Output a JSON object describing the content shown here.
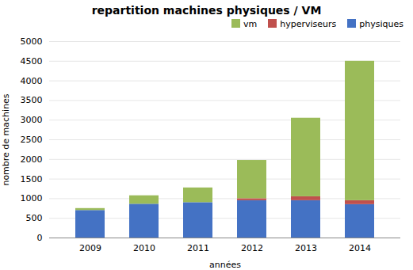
{
  "chart_data": {
    "type": "bar",
    "stacked": true,
    "title": "repartition machines physiques / VM",
    "xlabel": "années",
    "ylabel": "nombre de machines",
    "categories": [
      "2009",
      "2010",
      "2011",
      "2012",
      "2013",
      "2014"
    ],
    "series": [
      {
        "name": "physiques",
        "color": "#4472C4",
        "values": [
          700,
          860,
          900,
          950,
          950,
          850
        ]
      },
      {
        "name": "hyperviseurs",
        "color": "#C0504D",
        "values": [
          0,
          0,
          0,
          50,
          100,
          100
        ]
      },
      {
        "name": "vm",
        "color": "#9BBB59",
        "values": [
          50,
          215,
          375,
          975,
          2000,
          3550
        ]
      }
    ],
    "ylim": [
      0,
      5000
    ],
    "yticks": [
      0,
      500,
      1000,
      1500,
      2000,
      2500,
      3000,
      3500,
      4000,
      4500,
      5000
    ],
    "grid": true,
    "legend": "upper right"
  }
}
